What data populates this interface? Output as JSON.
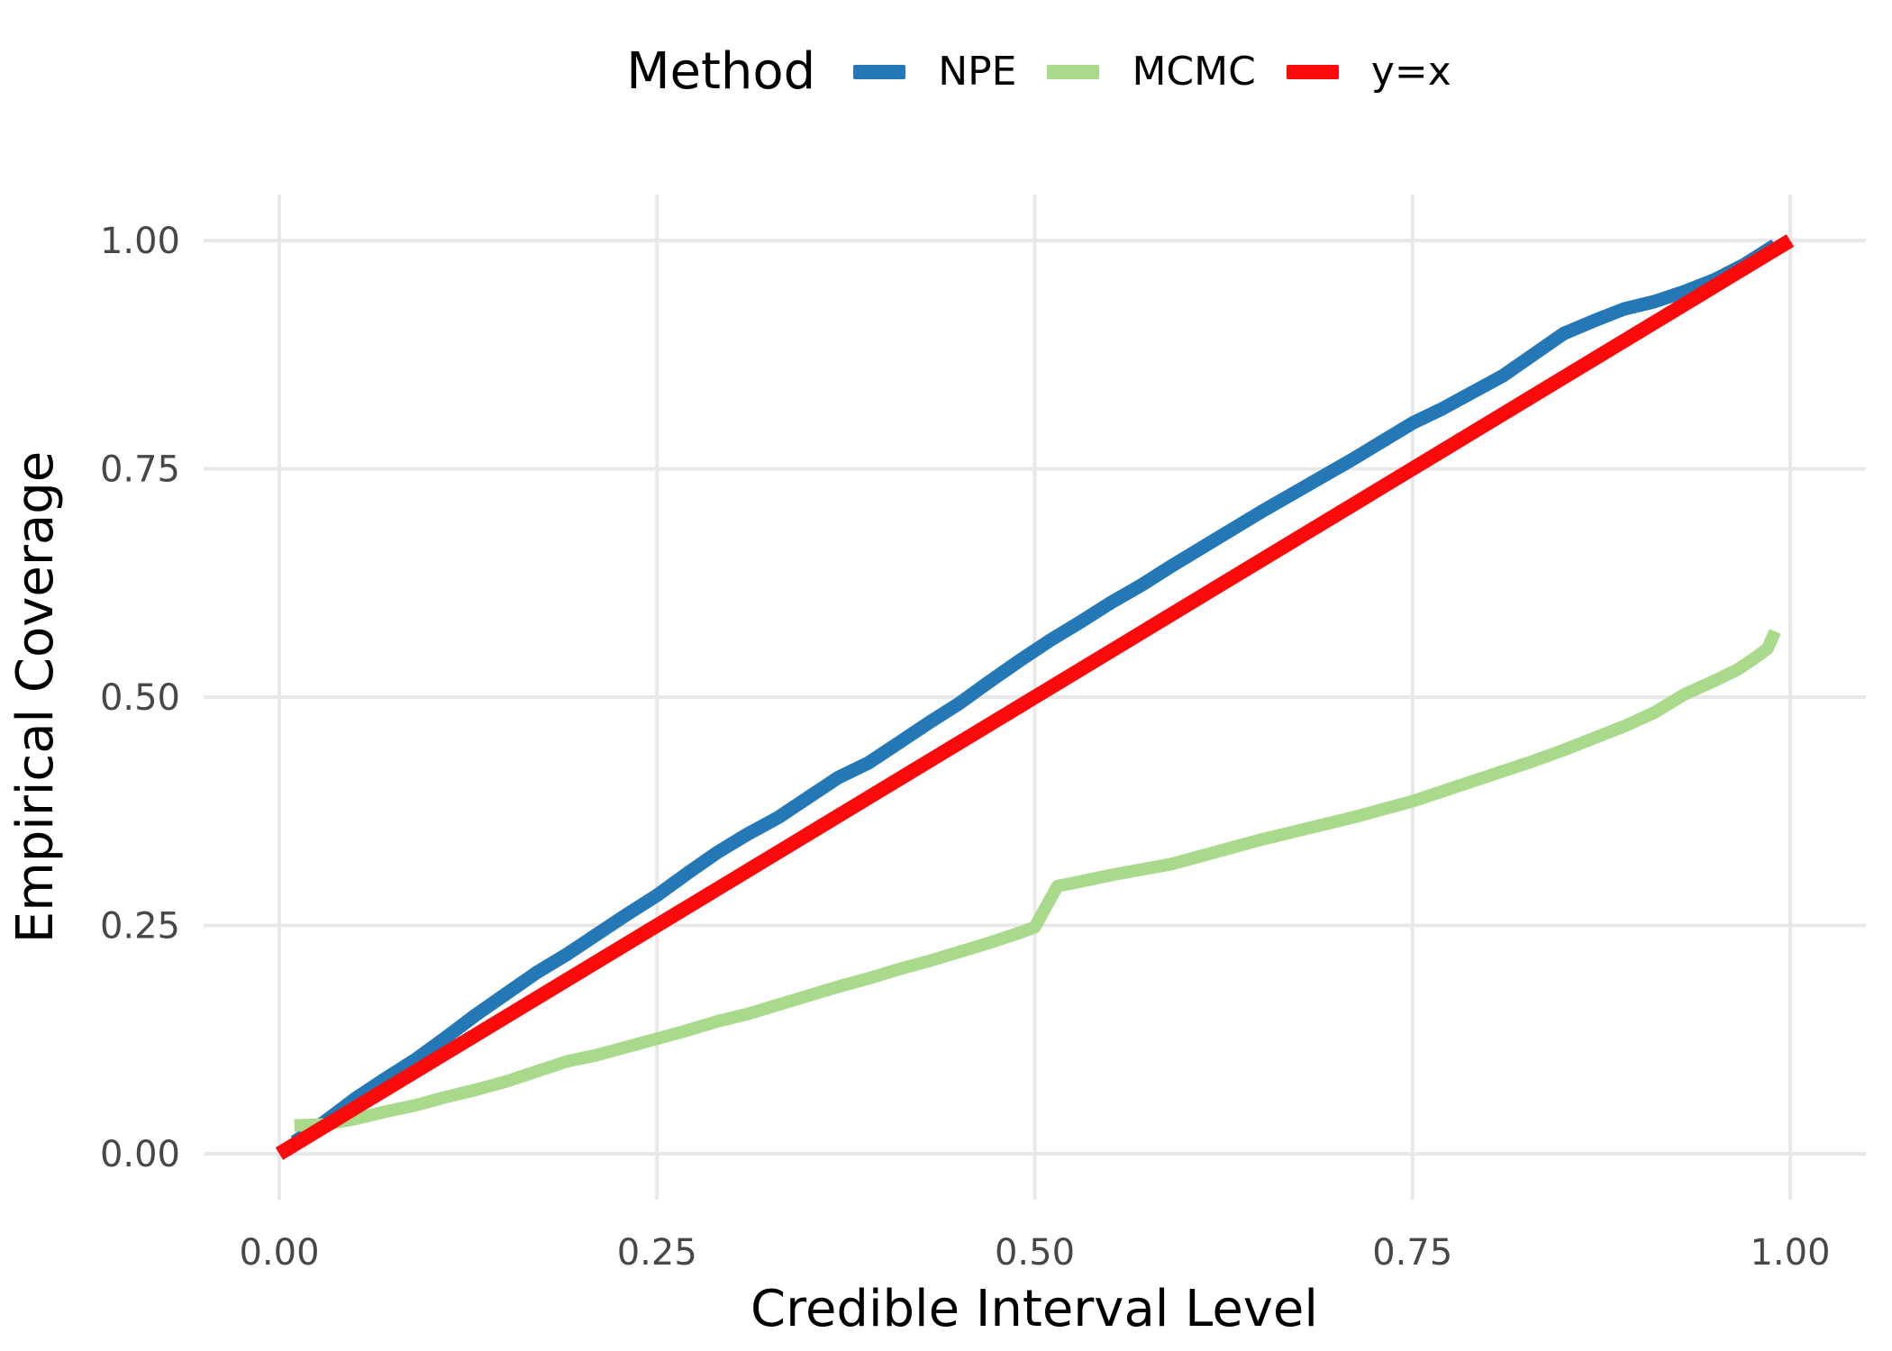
{
  "chart_data": {
    "type": "line",
    "title": "",
    "legend_title": "Method",
    "legend_position": "top",
    "xlabel": "Credible Interval Level",
    "ylabel": "Empirical Coverage",
    "xlim": [
      0,
      1
    ],
    "ylim": [
      0,
      1
    ],
    "grid": true,
    "background_color": "#ffffff",
    "gridline_color": "#e8e8e8",
    "tick_label_color": "#474747",
    "xticks": {
      "values": [
        0,
        0.25,
        0.5,
        0.75,
        1
      ],
      "labels": [
        "0.00",
        "0.25",
        "0.50",
        "0.75",
        "1.00"
      ]
    },
    "yticks": {
      "values": [
        0,
        0.25,
        0.5,
        0.75,
        1
      ],
      "labels": [
        "0.00",
        "0.25",
        "0.50",
        "0.75",
        "1.00"
      ]
    },
    "series": [
      {
        "name": "NPE",
        "color": "#2478b5",
        "stroke_width": 15,
        "points": [
          [
            0.01,
            0.013
          ],
          [
            0.03,
            0.035
          ],
          [
            0.05,
            0.06
          ],
          [
            0.07,
            0.082
          ],
          [
            0.09,
            0.103
          ],
          [
            0.11,
            0.127
          ],
          [
            0.13,
            0.152
          ],
          [
            0.15,
            0.175
          ],
          [
            0.17,
            0.198
          ],
          [
            0.19,
            0.218
          ],
          [
            0.21,
            0.24
          ],
          [
            0.23,
            0.262
          ],
          [
            0.25,
            0.283
          ],
          [
            0.27,
            0.307
          ],
          [
            0.29,
            0.33
          ],
          [
            0.31,
            0.35
          ],
          [
            0.33,
            0.368
          ],
          [
            0.35,
            0.39
          ],
          [
            0.37,
            0.412
          ],
          [
            0.39,
            0.428
          ],
          [
            0.41,
            0.45
          ],
          [
            0.43,
            0.472
          ],
          [
            0.45,
            0.493
          ],
          [
            0.47,
            0.517
          ],
          [
            0.49,
            0.54
          ],
          [
            0.51,
            0.562
          ],
          [
            0.53,
            0.582
          ],
          [
            0.55,
            0.603
          ],
          [
            0.57,
            0.622
          ],
          [
            0.59,
            0.643
          ],
          [
            0.61,
            0.663
          ],
          [
            0.63,
            0.683
          ],
          [
            0.65,
            0.703
          ],
          [
            0.67,
            0.722
          ],
          [
            0.69,
            0.741
          ],
          [
            0.71,
            0.76
          ],
          [
            0.73,
            0.78
          ],
          [
            0.75,
            0.8
          ],
          [
            0.77,
            0.816
          ],
          [
            0.79,
            0.834
          ],
          [
            0.81,
            0.852
          ],
          [
            0.83,
            0.875
          ],
          [
            0.85,
            0.898
          ],
          [
            0.87,
            0.912
          ],
          [
            0.89,
            0.925
          ],
          [
            0.91,
            0.933
          ],
          [
            0.93,
            0.944
          ],
          [
            0.95,
            0.957
          ],
          [
            0.97,
            0.974
          ],
          [
            0.99,
            0.995
          ]
        ]
      },
      {
        "name": "MCMC",
        "color": "#a9da8c",
        "stroke_width": 14,
        "points": [
          [
            0.01,
            0.031
          ],
          [
            0.03,
            0.032
          ],
          [
            0.05,
            0.038
          ],
          [
            0.07,
            0.046
          ],
          [
            0.09,
            0.053
          ],
          [
            0.11,
            0.062
          ],
          [
            0.13,
            0.07
          ],
          [
            0.15,
            0.079
          ],
          [
            0.17,
            0.09
          ],
          [
            0.19,
            0.101
          ],
          [
            0.21,
            0.108
          ],
          [
            0.23,
            0.117
          ],
          [
            0.25,
            0.126
          ],
          [
            0.27,
            0.135
          ],
          [
            0.29,
            0.145
          ],
          [
            0.31,
            0.153
          ],
          [
            0.33,
            0.163
          ],
          [
            0.35,
            0.173
          ],
          [
            0.37,
            0.183
          ],
          [
            0.39,
            0.192
          ],
          [
            0.41,
            0.202
          ],
          [
            0.43,
            0.211
          ],
          [
            0.45,
            0.221
          ],
          [
            0.47,
            0.231
          ],
          [
            0.49,
            0.242
          ],
          [
            0.5,
            0.248
          ],
          [
            0.515,
            0.293
          ],
          [
            0.53,
            0.298
          ],
          [
            0.55,
            0.305
          ],
          [
            0.57,
            0.311
          ],
          [
            0.59,
            0.317
          ],
          [
            0.61,
            0.326
          ],
          [
            0.63,
            0.335
          ],
          [
            0.65,
            0.344
          ],
          [
            0.67,
            0.352
          ],
          [
            0.69,
            0.36
          ],
          [
            0.71,
            0.368
          ],
          [
            0.73,
            0.377
          ],
          [
            0.75,
            0.386
          ],
          [
            0.77,
            0.397
          ],
          [
            0.79,
            0.408
          ],
          [
            0.81,
            0.419
          ],
          [
            0.83,
            0.43
          ],
          [
            0.85,
            0.442
          ],
          [
            0.87,
            0.455
          ],
          [
            0.89,
            0.468
          ],
          [
            0.91,
            0.483
          ],
          [
            0.93,
            0.503
          ],
          [
            0.95,
            0.518
          ],
          [
            0.965,
            0.53
          ],
          [
            0.975,
            0.541
          ],
          [
            0.985,
            0.553
          ],
          [
            0.99,
            0.572
          ]
        ]
      },
      {
        "name": "y=x",
        "color": "#fa0a0a",
        "stroke_width": 16,
        "points": [
          [
            0.0,
            0.0
          ],
          [
            1.0,
            1.0
          ]
        ]
      }
    ]
  }
}
